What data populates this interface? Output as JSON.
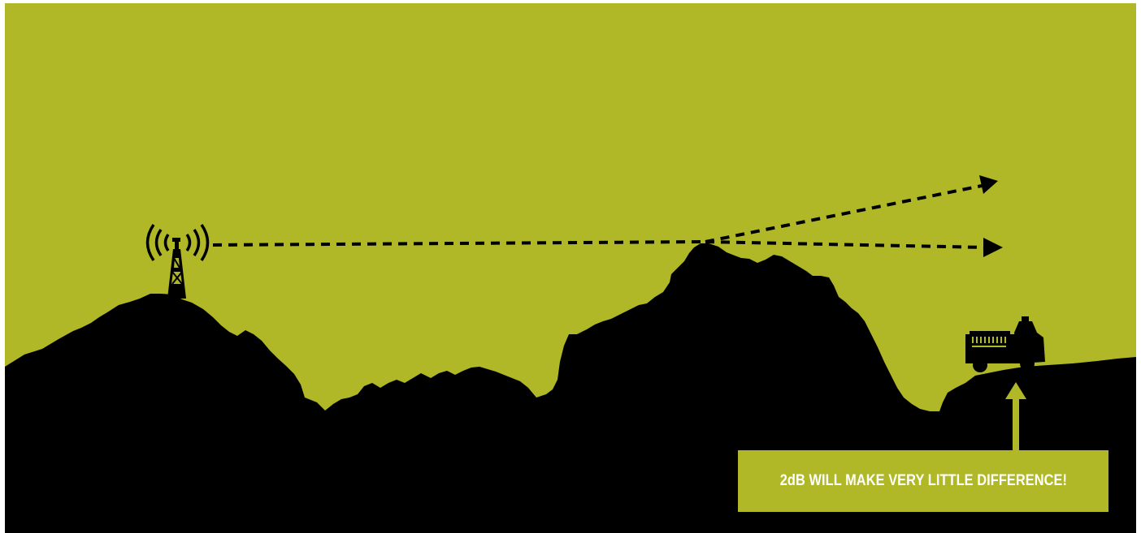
{
  "callout": {
    "text": "2dB WILL MAKE VERY LITTLE DIFFERENCE!"
  },
  "colors": {
    "sky": "#b0b827",
    "terrain": "#000000",
    "callout_background": "#b0b827",
    "callout_text": "#ffffff",
    "signal_lines": "#000000"
  },
  "icons": {
    "transmitter": "radio-tower-icon",
    "vehicle": "fire-truck-icon"
  }
}
